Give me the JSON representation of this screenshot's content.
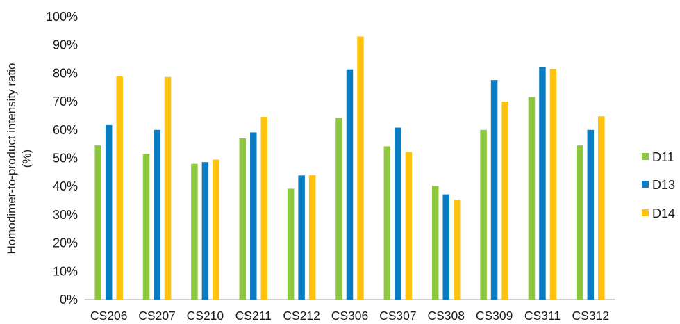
{
  "chart_data": {
    "type": "bar",
    "ylabel_line1": "Homodimer-to-product intensity ratio",
    "ylabel_line2": "(%)",
    "ylim": [
      0,
      100
    ],
    "yticks": [
      "0%",
      "10%",
      "20%",
      "30%",
      "40%",
      "50%",
      "60%",
      "70%",
      "80%",
      "90%",
      "100%"
    ],
    "grid": false,
    "legend_position": "right",
    "categories": [
      "CS206",
      "CS207",
      "CS210",
      "CS211",
      "CS212",
      "CS306",
      "CS307",
      "CS308",
      "CS309",
      "CS311",
      "CS312"
    ],
    "series": [
      {
        "name": "D11",
        "color": "#8DC63F",
        "values": [
          54.5,
          51.5,
          48,
          57,
          39.2,
          64.3,
          54.2,
          40.3,
          60,
          71.6,
          54.5
        ]
      },
      {
        "name": "D13",
        "color": "#0A7DC2",
        "values": [
          61.7,
          60,
          48.6,
          59.1,
          43.9,
          81.4,
          60.8,
          37.2,
          77.6,
          82.2,
          60
        ]
      },
      {
        "name": "D14",
        "color": "#FFC20E",
        "values": [
          78.9,
          78.7,
          49.5,
          64.6,
          44,
          93,
          52.2,
          35.4,
          70,
          81.6,
          64.8
        ]
      }
    ]
  }
}
